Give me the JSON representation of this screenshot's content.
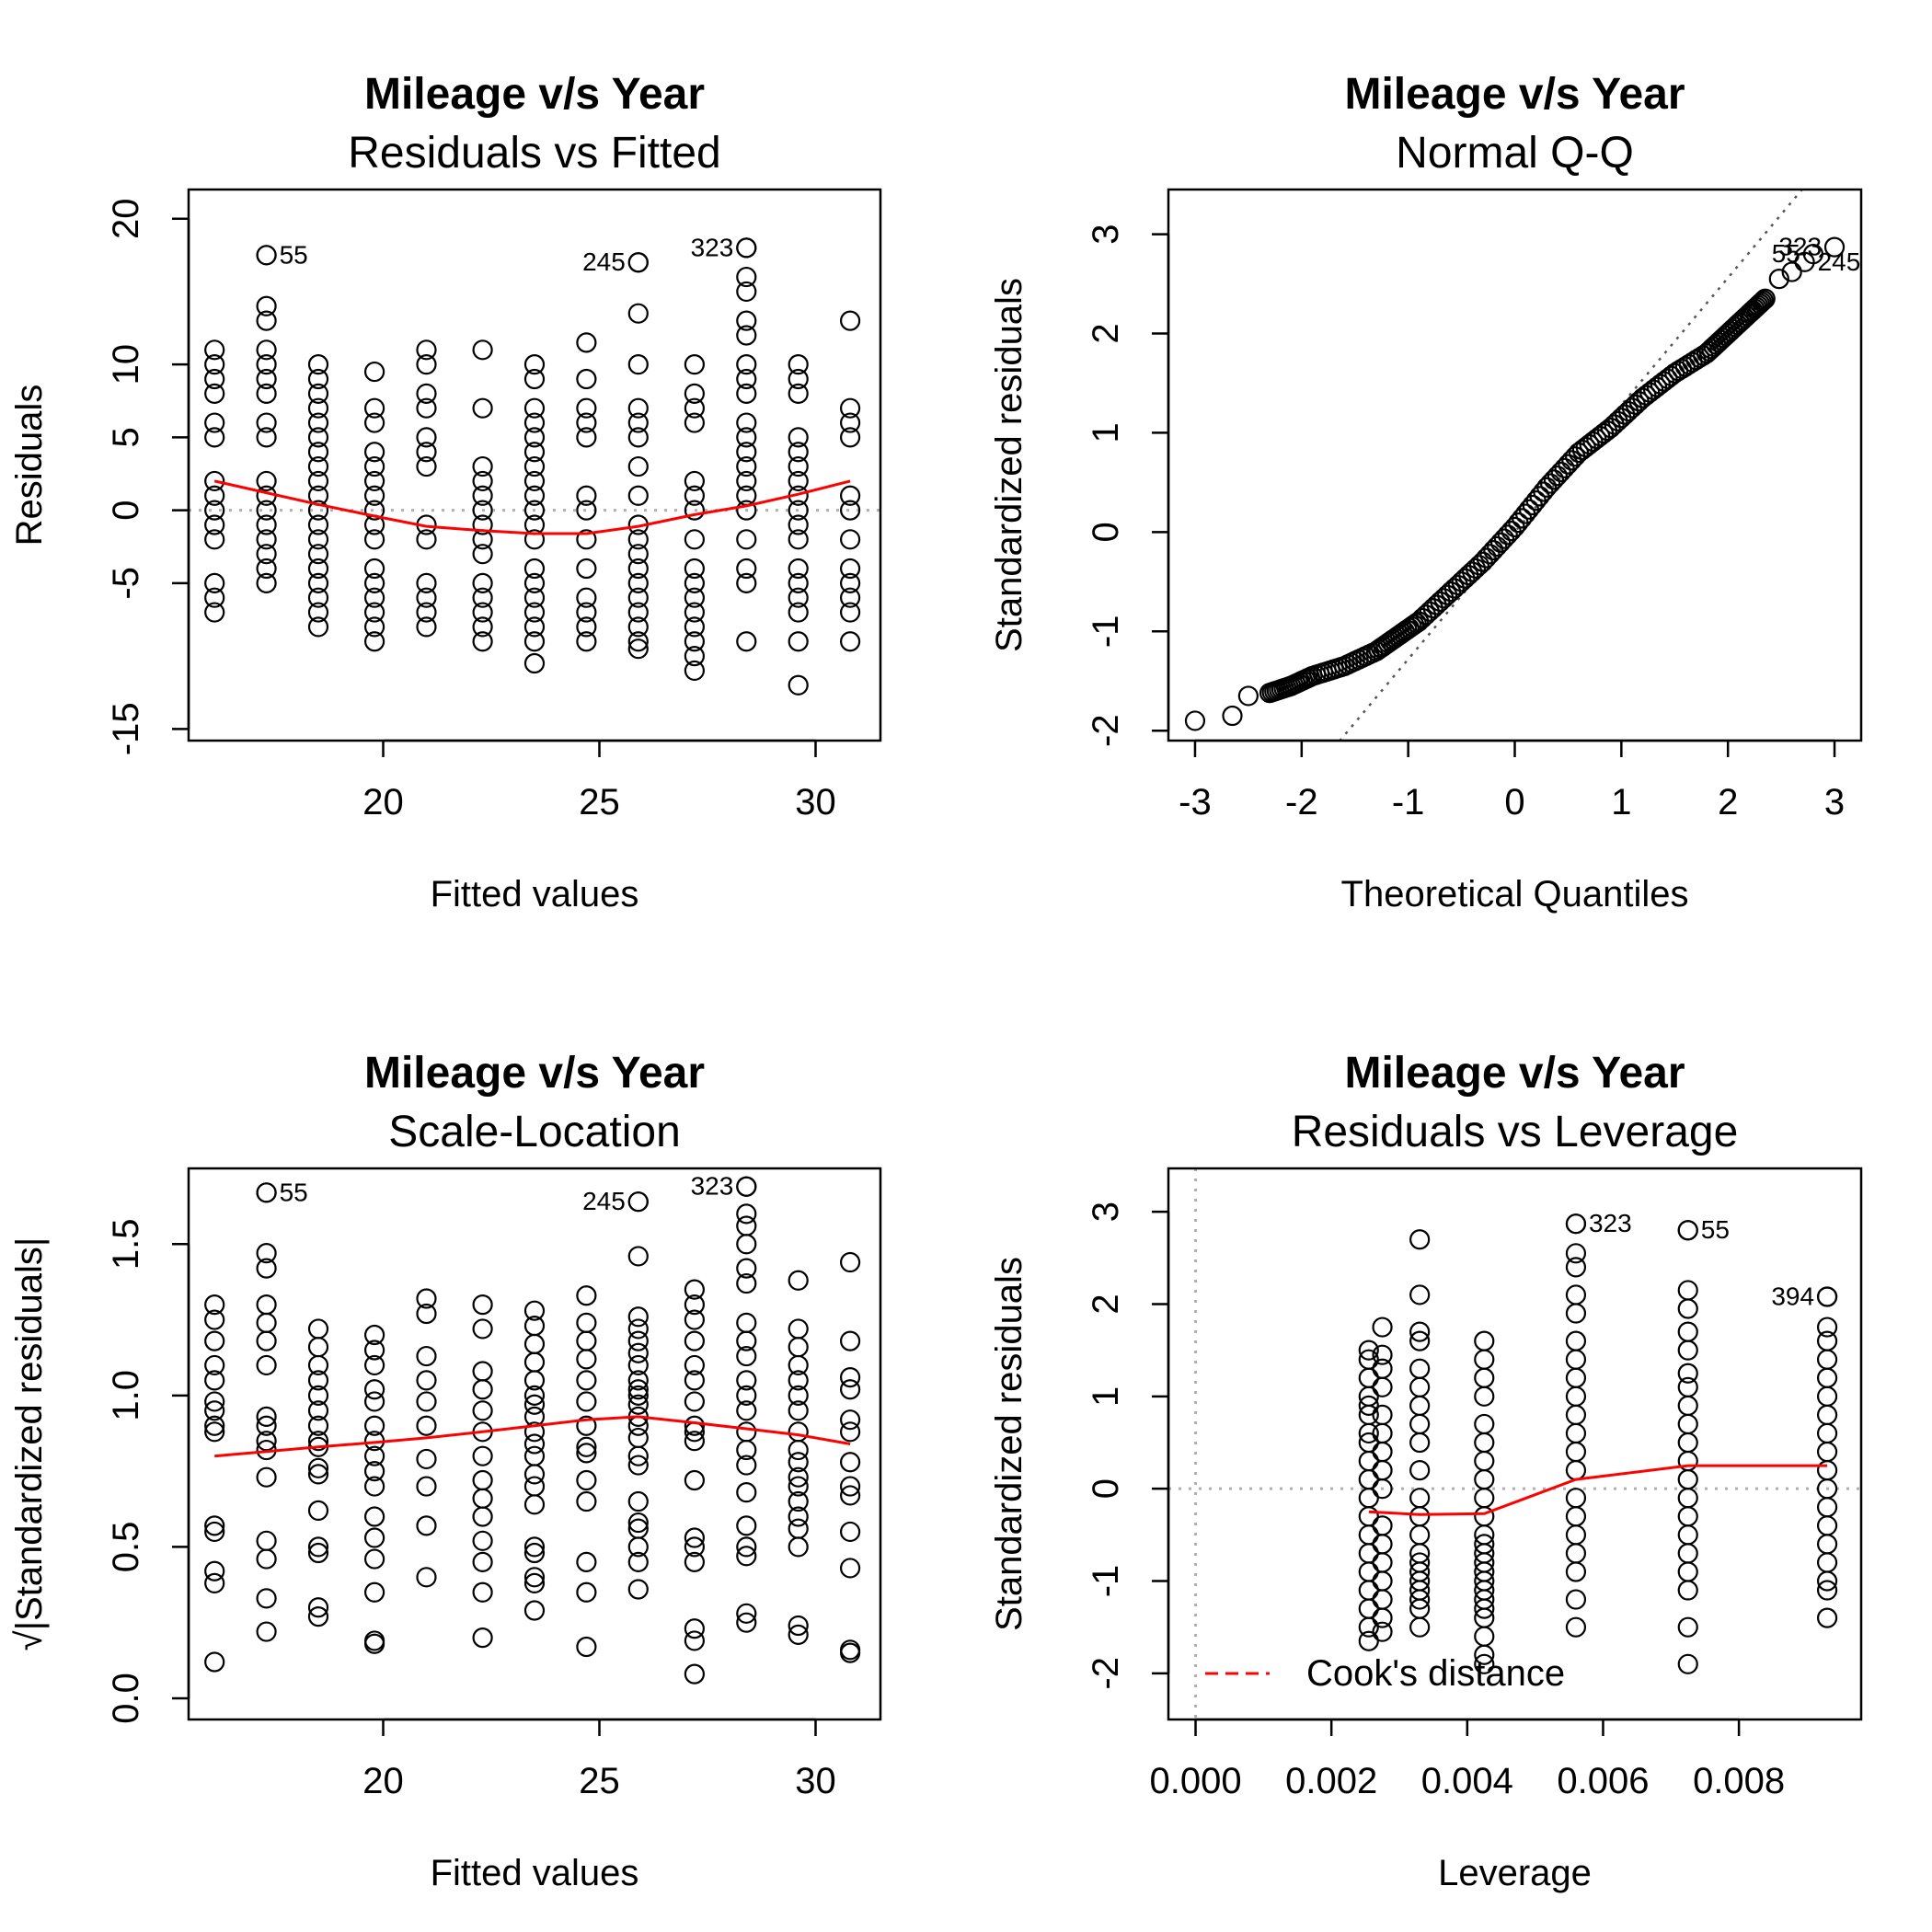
{
  "chart_data": [
    {
      "type": "scatter",
      "title": "Mileage v/s Year",
      "subtitle": "Residuals vs Fitted",
      "xlabel": "Fitted values",
      "ylabel": "Residuals",
      "xlim": [
        15.5,
        31.5
      ],
      "ylim": [
        -15.8,
        22
      ],
      "xticks": [
        "20",
        "25",
        "30"
      ],
      "yticks": [
        "-15",
        "-5",
        "0",
        "5",
        "10",
        "20"
      ],
      "reference_line": {
        "type": "horizontal",
        "value": 0,
        "style": "dotted",
        "color": "#b0b0b0"
      },
      "points": [
        {
          "x": 16.1,
          "y": [
            11,
            10,
            9,
            8,
            6,
            5,
            2,
            1,
            0,
            -1,
            -2,
            -5,
            -6,
            -7
          ]
        },
        {
          "x": 17.3,
          "y": [
            17.5,
            14,
            13,
            11,
            10,
            9,
            8,
            6,
            5,
            2,
            1,
            0,
            -1,
            -2,
            -3,
            -4,
            -5
          ]
        },
        {
          "x": 18.5,
          "y": [
            10,
            9,
            8,
            7,
            6,
            5,
            4,
            3,
            2,
            1,
            0,
            -1,
            -2,
            -3,
            -4,
            -5,
            -6,
            -7,
            -8
          ]
        },
        {
          "x": 19.8,
          "y": [
            9.5,
            7,
            6,
            4,
            3,
            2,
            1,
            0,
            -1,
            -2,
            -4,
            -5,
            -6,
            -7,
            -8,
            -9
          ]
        },
        {
          "x": 21.0,
          "y": [
            11,
            10,
            8,
            7,
            5,
            4,
            3,
            -1,
            -2,
            -5,
            -6,
            -7,
            -8
          ]
        },
        {
          "x": 22.3,
          "y": [
            11,
            7,
            3,
            2,
            1,
            0,
            -1,
            -2,
            -3,
            -5,
            -6,
            -7,
            -8,
            -9
          ]
        },
        {
          "x": 23.5,
          "y": [
            10,
            9,
            7,
            6,
            5,
            4,
            3,
            2,
            1,
            0,
            -1,
            -2,
            -4,
            -5,
            -6,
            -7,
            -8,
            -9,
            -10.5
          ]
        },
        {
          "x": 24.7,
          "y": [
            11.5,
            9,
            7,
            6,
            5,
            1,
            0,
            -2,
            -4,
            -6,
            -7,
            -8,
            -9
          ]
        },
        {
          "x": 25.9,
          "y": [
            17,
            13.5,
            10,
            7,
            6,
            5,
            3,
            1,
            -1,
            -2,
            -3,
            -4,
            -5,
            -6,
            -7,
            -8,
            -9,
            -9.5
          ]
        },
        {
          "x": 27.2,
          "y": [
            10,
            8,
            7,
            6,
            2,
            1,
            0,
            -2,
            -4,
            -5,
            -6,
            -7,
            -8,
            -9,
            -10,
            -11
          ]
        },
        {
          "x": 28.4,
          "y": [
            18,
            16,
            15,
            13,
            12,
            10,
            9,
            8,
            6,
            5,
            4,
            3,
            2,
            1,
            0,
            -2,
            -4,
            -5,
            -9
          ]
        },
        {
          "x": 29.6,
          "y": [
            10,
            9,
            8,
            5,
            4,
            3,
            2,
            1,
            0,
            -1,
            -2,
            -4,
            -5,
            -6,
            -7,
            -9,
            -12
          ]
        },
        {
          "x": 30.8,
          "y": [
            13,
            7,
            6,
            5,
            1,
            0,
            -2,
            -4,
            -5,
            -6,
            -7,
            -9
          ]
        }
      ],
      "smoother": {
        "x": [
          16.1,
          17.3,
          18.5,
          19.8,
          21.0,
          22.3,
          23.5,
          24.7,
          25.9,
          27.2,
          28.4,
          29.6,
          30.8
        ],
        "y": [
          2,
          1.2,
          0.4,
          -0.4,
          -1.1,
          -1.4,
          -1.6,
          -1.6,
          -1.1,
          -0.3,
          0.3,
          1.1,
          2
        ]
      },
      "annotations": [
        {
          "label": "55",
          "x": 17.3,
          "y": 17.5,
          "side": "right"
        },
        {
          "label": "245",
          "x": 25.9,
          "y": 17,
          "side": "left"
        },
        {
          "label": "323",
          "x": 28.4,
          "y": 18,
          "side": "left"
        }
      ]
    },
    {
      "type": "scatter",
      "title": "Mileage v/s Year",
      "subtitle": "Normal Q-Q",
      "xlabel": "Theoretical Quantiles",
      "ylabel": "Standardized residuals",
      "xlim": [
        -3.25,
        3.25
      ],
      "ylim": [
        -2.1,
        3.45
      ],
      "xticks": [
        "-3",
        "-2",
        "-1",
        "0",
        "1",
        "2",
        "3"
      ],
      "yticks": [
        "-2",
        "-1",
        "0",
        "1",
        "2",
        "3"
      ],
      "reference_line": {
        "type": "abline",
        "intercept": 0,
        "slope": 1.28,
        "style": "dotted",
        "color": "#555555"
      },
      "qq_curve": {
        "x": [
          -3.0,
          -2.65,
          -2.5,
          -2.3,
          -2.1,
          -1.9,
          -1.6,
          -1.3,
          -1.1,
          -0.9,
          -0.6,
          -0.3,
          0,
          0.3,
          0.6,
          0.9,
          1.2,
          1.5,
          1.8,
          2.0,
          2.2,
          2.35
        ],
        "y": [
          -1.9,
          -1.85,
          -1.65,
          -1.62,
          -1.55,
          -1.45,
          -1.35,
          -1.2,
          -1.05,
          -0.9,
          -0.6,
          -0.3,
          0.05,
          0.45,
          0.8,
          1.05,
          1.35,
          1.6,
          1.8,
          2.0,
          2.2,
          2.35
        ]
      },
      "extra_points": [
        {
          "x": 2.48,
          "y": 2.55
        },
        {
          "x": 2.6,
          "y": 2.62
        }
      ],
      "annotations": [
        {
          "label": "323",
          "x": 3.0,
          "y": 2.87,
          "side": "left"
        },
        {
          "label": "55",
          "x": 2.8,
          "y": 2.8,
          "side": "left"
        },
        {
          "label": "245",
          "x": 2.72,
          "y": 2.72,
          "side": "right"
        }
      ]
    },
    {
      "type": "scatter",
      "title": "Mileage v/s Year",
      "subtitle": "Scale-Location",
      "xlabel": "Fitted values",
      "ylabel": "√|Standardized residuals|",
      "xlim": [
        15.5,
        31.5
      ],
      "ylim": [
        -0.07,
        1.75
      ],
      "xticks": [
        "20",
        "25",
        "30"
      ],
      "yticks": [
        "0.0",
        "0.5",
        "1.0",
        "1.5"
      ],
      "points": [
        {
          "x": 16.1,
          "y": [
            1.3,
            1.25,
            1.18,
            1.1,
            1.05,
            0.98,
            0.95,
            0.9,
            0.88,
            0.57,
            0.55,
            0.42,
            0.38,
            0.12
          ]
        },
        {
          "x": 17.3,
          "y": [
            1.67,
            1.47,
            1.42,
            1.3,
            1.24,
            1.18,
            1.1,
            0.93,
            0.9,
            0.85,
            0.82,
            0.73,
            0.52,
            0.46,
            0.33,
            0.22
          ]
        },
        {
          "x": 18.5,
          "y": [
            1.22,
            1.16,
            1.1,
            1.05,
            1.0,
            0.95,
            0.9,
            0.85,
            0.83,
            0.76,
            0.74,
            0.62,
            0.5,
            0.48,
            0.3,
            0.27
          ]
        },
        {
          "x": 19.8,
          "y": [
            1.2,
            1.15,
            1.1,
            1.02,
            0.98,
            0.9,
            0.85,
            0.8,
            0.75,
            0.7,
            0.6,
            0.53,
            0.46,
            0.35,
            0.19,
            0.18
          ]
        },
        {
          "x": 21.0,
          "y": [
            1.32,
            1.27,
            1.13,
            1.05,
            0.98,
            0.9,
            0.79,
            0.7,
            0.57,
            0.4
          ]
        },
        {
          "x": 22.3,
          "y": [
            1.3,
            1.22,
            1.08,
            1.02,
            0.95,
            0.88,
            0.8,
            0.72,
            0.66,
            0.6,
            0.52,
            0.45,
            0.35,
            0.2
          ]
        },
        {
          "x": 23.5,
          "y": [
            1.28,
            1.23,
            1.17,
            1.11,
            1.05,
            1.0,
            0.97,
            0.93,
            0.88,
            0.84,
            0.8,
            0.74,
            0.7,
            0.64,
            0.5,
            0.48,
            0.4,
            0.38,
            0.29
          ]
        },
        {
          "x": 24.7,
          "y": [
            1.33,
            1.24,
            1.18,
            1.12,
            1.05,
            0.98,
            0.9,
            0.83,
            0.81,
            0.72,
            0.65,
            0.45,
            0.35,
            0.17
          ]
        },
        {
          "x": 25.9,
          "y": [
            1.64,
            1.46,
            1.26,
            1.22,
            1.18,
            1.14,
            1.1,
            1.05,
            1.02,
            1.0,
            0.97,
            0.93,
            0.9,
            0.86,
            0.8,
            0.77,
            0.65,
            0.58,
            0.56,
            0.5,
            0.45,
            0.36
          ]
        },
        {
          "x": 27.2,
          "y": [
            1.35,
            1.3,
            1.25,
            1.18,
            1.1,
            1.05,
            0.98,
            0.9,
            0.88,
            0.85,
            0.72,
            0.53,
            0.5,
            0.45,
            0.23,
            0.19,
            0.08
          ]
        },
        {
          "x": 28.4,
          "y": [
            1.69,
            1.6,
            1.56,
            1.5,
            1.42,
            1.37,
            1.24,
            1.18,
            1.13,
            1.05,
            1.0,
            0.95,
            0.88,
            0.82,
            0.77,
            0.68,
            0.57,
            0.5,
            0.47,
            0.28,
            0.25
          ]
        },
        {
          "x": 29.6,
          "y": [
            1.38,
            1.22,
            1.16,
            1.1,
            1.05,
            1.0,
            0.95,
            0.88,
            0.82,
            0.78,
            0.73,
            0.7,
            0.65,
            0.6,
            0.56,
            0.5,
            0.24,
            0.21
          ]
        },
        {
          "x": 30.8,
          "y": [
            1.44,
            1.18,
            1.06,
            1.02,
            0.92,
            0.88,
            0.78,
            0.7,
            0.67,
            0.55,
            0.43,
            0.16,
            0.15
          ]
        }
      ],
      "smoother": {
        "x": [
          16.1,
          17.3,
          18.5,
          19.8,
          21.0,
          22.3,
          23.5,
          24.7,
          25.9,
          27.2,
          28.4,
          29.6,
          30.8
        ],
        "y": [
          0.8,
          0.815,
          0.83,
          0.845,
          0.86,
          0.88,
          0.9,
          0.92,
          0.93,
          0.91,
          0.89,
          0.87,
          0.84
        ]
      },
      "annotations": [
        {
          "label": "55",
          "x": 17.3,
          "y": 1.67,
          "side": "right"
        },
        {
          "label": "245",
          "x": 25.9,
          "y": 1.64,
          "side": "left"
        },
        {
          "label": "323",
          "x": 28.4,
          "y": 1.69,
          "side": "left"
        }
      ]
    },
    {
      "type": "scatter",
      "title": "Mileage v/s Year",
      "subtitle": "Residuals vs Leverage",
      "xlabel": "Leverage",
      "ylabel": "Standardized residuals",
      "xlim": [
        -0.0004,
        0.0098
      ],
      "ylim": [
        -2.5,
        3.47
      ],
      "xticks": [
        "0.000",
        "0.002",
        "0.004",
        "0.006",
        "0.008"
      ],
      "yticks": [
        "-2",
        "-1",
        "0",
        "1",
        "2",
        "3"
      ],
      "reference_lines": [
        {
          "type": "horizontal",
          "value": 0,
          "style": "dotted",
          "color": "#b0b0b0"
        },
        {
          "type": "vertical",
          "value": 0,
          "style": "dotted",
          "color": "#b0b0b0"
        }
      ],
      "points": [
        {
          "x": 0.00255,
          "y": [
            1.5,
            1.4,
            1.2,
            1.0,
            0.9,
            0.8,
            0.6,
            0.5,
            0.3,
            0.1,
            -0.1,
            -0.3,
            -0.5,
            -0.7,
            -0.9,
            -1.1,
            -1.3,
            -1.5,
            -1.65
          ]
        },
        {
          "x": 0.00275,
          "y": [
            1.75,
            1.45,
            1.3,
            1.1,
            0.8,
            0.6,
            0.4,
            0.2,
            0,
            -0.4,
            -0.6,
            -0.8,
            -1.0,
            -1.2,
            -1.4,
            -1.55
          ]
        },
        {
          "x": 0.0033,
          "y": [
            2.7,
            2.1,
            1.7,
            1.6,
            1.3,
            1.1,
            0.9,
            0.7,
            0.5,
            0.2,
            -0.1,
            -0.3,
            -0.5,
            -0.7,
            -0.8,
            -0.9,
            -1.0,
            -1.1,
            -1.2,
            -1.3,
            -1.5
          ]
        },
        {
          "x": 0.00425,
          "y": [
            1.6,
            1.4,
            1.2,
            1.0,
            0.7,
            0.5,
            0.3,
            0.1,
            -0.1,
            -0.3,
            -0.5,
            -0.6,
            -0.7,
            -0.8,
            -0.9,
            -1.0,
            -1.1,
            -1.2,
            -1.3,
            -1.4,
            -1.6,
            -1.8,
            -1.9
          ]
        },
        {
          "x": 0.0056,
          "y": [
            2.87,
            2.55,
            2.4,
            2.1,
            1.9,
            1.6,
            1.4,
            1.2,
            1.0,
            0.8,
            0.6,
            0.4,
            0.2,
            -0.1,
            -0.3,
            -0.5,
            -0.7,
            -0.9,
            -1.2,
            -1.5
          ]
        },
        {
          "x": 0.00725,
          "y": [
            2.8,
            2.15,
            1.95,
            1.7,
            1.5,
            1.25,
            1.1,
            0.9,
            0.7,
            0.5,
            0.3,
            0.1,
            -0.1,
            -0.3,
            -0.5,
            -0.7,
            -0.9,
            -1.1,
            -1.5,
            -1.9
          ]
        },
        {
          "x": 0.0093,
          "y": [
            2.08,
            1.75,
            1.6,
            1.4,
            1.2,
            1.0,
            0.8,
            0.6,
            0.4,
            0.2,
            0,
            -0.2,
            -0.4,
            -0.6,
            -0.8,
            -1.0,
            -1.1,
            -1.4
          ]
        }
      ],
      "smoother": {
        "x": [
          0.00255,
          0.0033,
          0.00425,
          0.0056,
          0.00725,
          0.0093
        ],
        "y": [
          -0.25,
          -0.28,
          -0.27,
          0.1,
          0.25,
          0.25
        ]
      },
      "annotations": [
        {
          "label": "323",
          "x": 0.0056,
          "y": 2.87,
          "side": "right"
        },
        {
          "label": "55",
          "x": 0.00725,
          "y": 2.8,
          "side": "right"
        },
        {
          "label": "394",
          "x": 0.0093,
          "y": 2.08,
          "side": "left"
        }
      ],
      "legend": {
        "label": "Cook's distance",
        "position": "bottom-left",
        "line_style": "dashed",
        "color": "#ff0000"
      }
    }
  ]
}
